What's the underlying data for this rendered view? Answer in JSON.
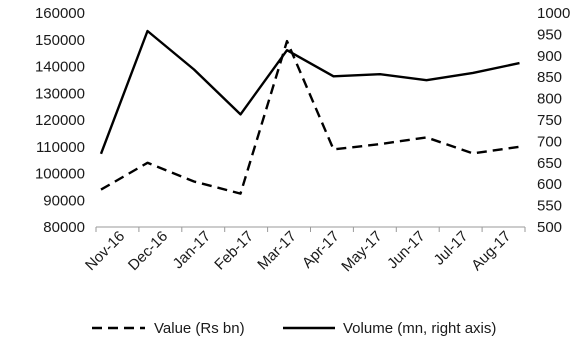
{
  "chart_data": {
    "type": "line",
    "categories": [
      "Nov-16",
      "Dec-16",
      "Jan-17",
      "Feb-17",
      "Mar-17",
      "Apr-17",
      "May-17",
      "Jun-17",
      "Jul-17",
      "Aug-17"
    ],
    "series": [
      {
        "name": "Value (Rs bn)",
        "axis": "left",
        "style": "dashed",
        "color": "#000000",
        "values": [
          94000,
          104000,
          97000,
          92500,
          149500,
          109000,
          111000,
          113500,
          107500,
          110000
        ]
      },
      {
        "name": "Volume (mn, right axis)",
        "axis": "right",
        "style": "solid",
        "color": "#000000",
        "values": [
          671,
          958,
          868,
          763,
          913,
          852,
          857,
          843,
          860,
          883
        ]
      }
    ],
    "y_left": {
      "ylim": [
        80000,
        160000
      ],
      "ticks": [
        "80000",
        "90000",
        "100000",
        "110000",
        "120000",
        "130000",
        "140000",
        "150000",
        "160000"
      ]
    },
    "y_right": {
      "ylim": [
        500,
        1000
      ],
      "ticks": [
        "500",
        "550",
        "600",
        "650",
        "700",
        "750",
        "800",
        "850",
        "900",
        "950",
        "1000"
      ]
    },
    "title": "",
    "xlabel": "",
    "ylabel": "",
    "grid": false,
    "legend": {
      "placement": "bottom"
    }
  }
}
